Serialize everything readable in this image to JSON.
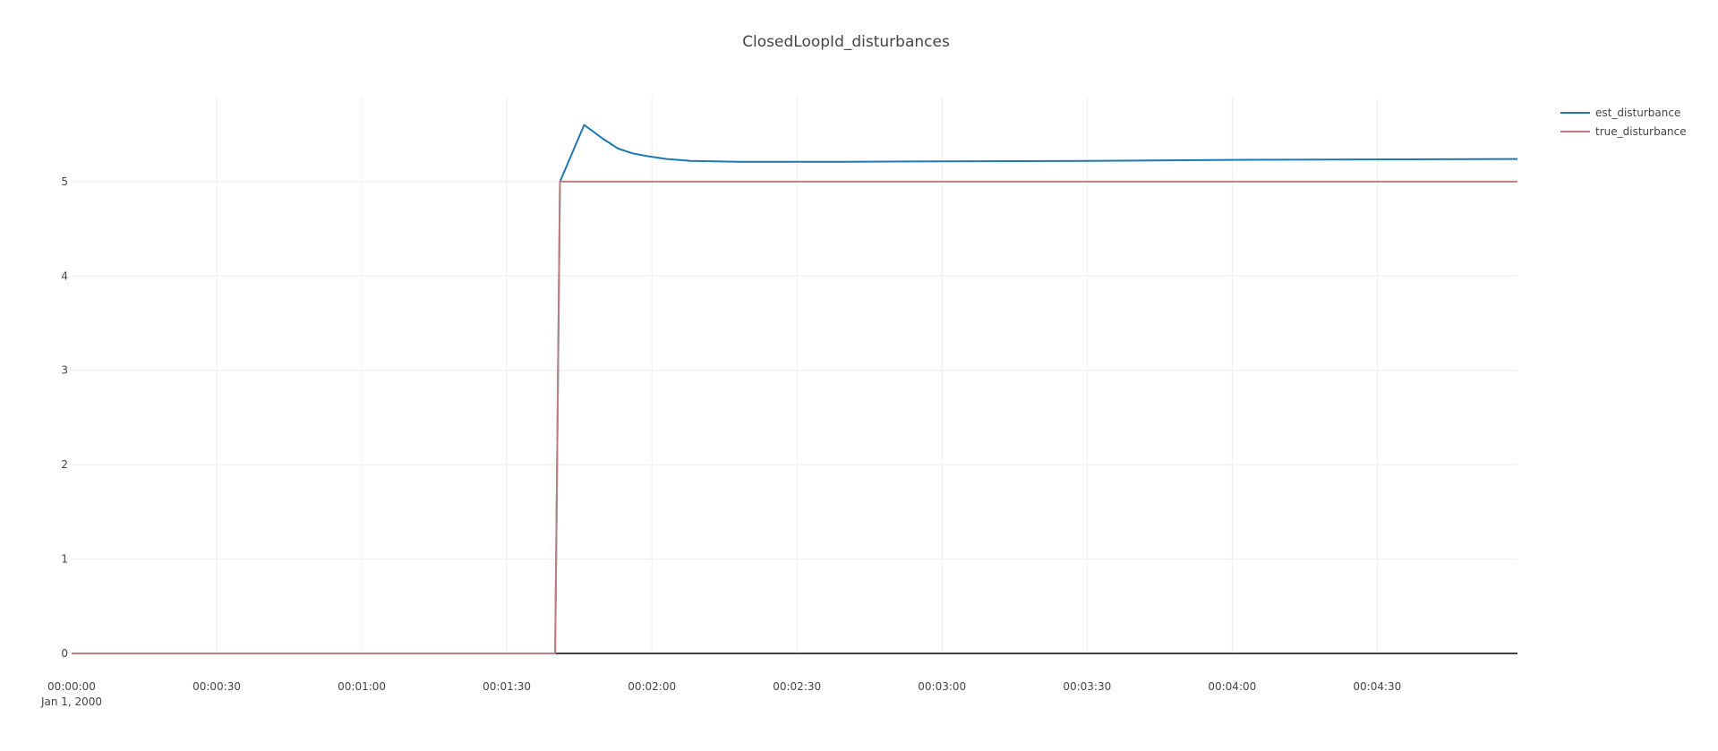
{
  "chart_data": {
    "type": "line",
    "title": "ClosedLoopId_disturbances",
    "xlabel": "",
    "ylabel": "",
    "x_axis": {
      "type": "date",
      "range": [
        "2000-01-01 00:00:00",
        "2000-01-01 00:04:59"
      ],
      "tick_values": [
        "2000-01-01 00:00:00",
        "2000-01-01 00:00:30",
        "2000-01-01 00:01:00",
        "2000-01-01 00:01:30",
        "2000-01-01 00:02:00",
        "2000-01-01 00:02:30",
        "2000-01-01 00:03:00",
        "2000-01-01 00:03:30",
        "2000-01-01 00:04:00",
        "2000-01-01 00:04:30"
      ],
      "tick_labels": [
        "00:00:00",
        "00:00:30",
        "00:01:00",
        "00:01:30",
        "00:02:00",
        "00:02:30",
        "00:03:00",
        "00:03:30",
        "00:04:00",
        "00:04:30"
      ],
      "first_tick_sublabel": "Jan 1, 2000"
    },
    "y_axis": {
      "range": [
        0,
        5.9
      ],
      "tick_values": [
        0,
        1,
        2,
        3,
        4,
        5
      ],
      "tick_labels": [
        "0",
        "1",
        "2",
        "3",
        "4",
        "5"
      ]
    },
    "grid": true,
    "legend": "top-right",
    "series": [
      {
        "name": "est_disturbance",
        "color": "#1f77b4",
        "x": [
          "2000-01-01 00:00:00",
          "2000-01-01 00:01:40",
          "2000-01-01 00:01:41",
          "2000-01-01 00:01:46",
          "2000-01-01 00:01:50",
          "2000-01-01 00:01:53",
          "2000-01-01 00:01:56",
          "2000-01-01 00:01:59",
          "2000-01-01 00:02:03",
          "2000-01-01 00:02:08",
          "2000-01-01 00:02:18",
          "2000-01-01 00:02:40",
          "2000-01-01 00:03:30",
          "2000-01-01 00:04:00",
          "2000-01-01 00:04:59"
        ],
        "y": [
          0,
          0,
          5.0,
          5.6,
          5.45,
          5.35,
          5.3,
          5.27,
          5.24,
          5.22,
          5.21,
          5.21,
          5.22,
          5.23,
          5.24
        ]
      },
      {
        "name": "true_disturbance",
        "color": "#bd7f81",
        "x": [
          "2000-01-01 00:00:00",
          "2000-01-01 00:01:40",
          "2000-01-01 00:01:41",
          "2000-01-01 00:04:59"
        ],
        "y": [
          0,
          0,
          5,
          5
        ]
      }
    ]
  }
}
